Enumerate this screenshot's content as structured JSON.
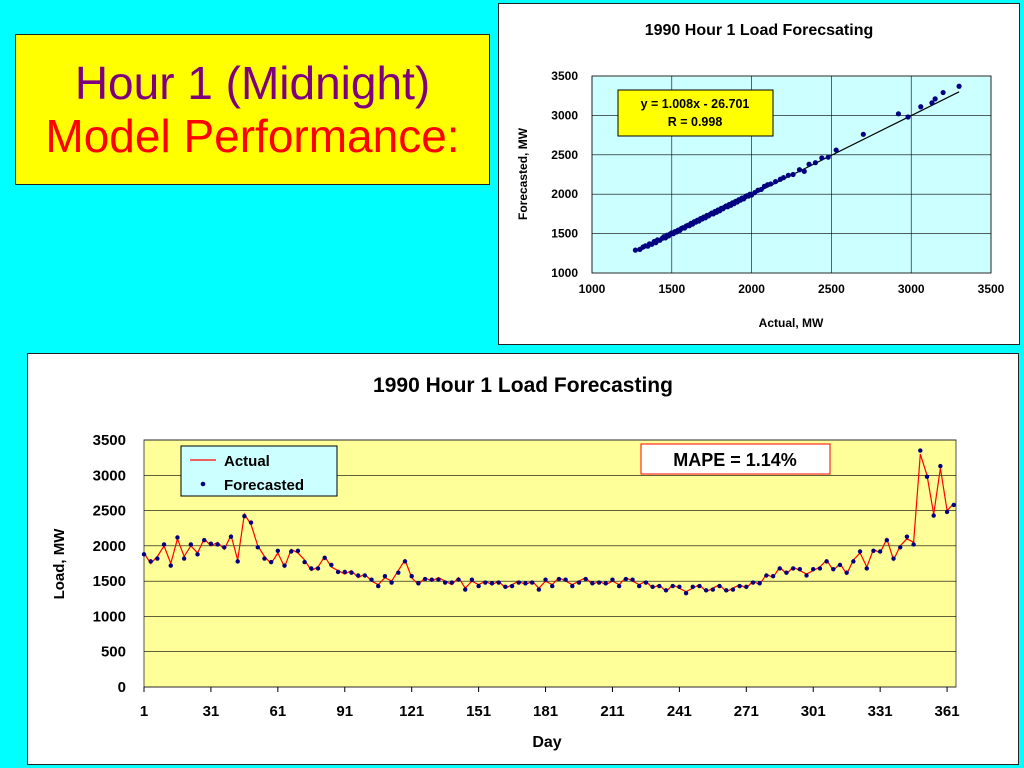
{
  "slide": {
    "title_line1": "Hour 1 (Midnight)",
    "title_line2": "Model Performance:",
    "colors": {
      "background": "#00FFFF",
      "title_box": "#FFFF00",
      "title_line1": "#7F007F",
      "title_line2": "#FF0000",
      "scatter_plot_area": "#CCFFFF",
      "line_plot_area": "#FFFF99",
      "actual_line": "#FF0000",
      "forecast_marker": "#000080"
    }
  },
  "chart_data": [
    {
      "type": "scatter",
      "title": "1990 Hour 1 Load Forecsating",
      "xlabel": "Actual, MW",
      "ylabel": "Forecasted, MW",
      "xlim": [
        1000,
        3500
      ],
      "ylim": [
        1000,
        3500
      ],
      "xticks": [
        1000,
        1500,
        2000,
        2500,
        3000,
        3500
      ],
      "yticks": [
        1000,
        1500,
        2000,
        2500,
        3000,
        3500
      ],
      "grid": true,
      "trendline": {
        "slope": 1.008,
        "intercept": -26.701,
        "x_range": [
          1300,
          3300
        ]
      },
      "annotation": {
        "line1": "y = 1.008x - 26.701",
        "line2": "R = 0.998"
      },
      "points": [
        [
          1272,
          1290
        ],
        [
          1300,
          1300
        ],
        [
          1320,
          1330
        ],
        [
          1335,
          1345
        ],
        [
          1350,
          1340
        ],
        [
          1360,
          1370
        ],
        [
          1375,
          1365
        ],
        [
          1390,
          1400
        ],
        [
          1400,
          1385
        ],
        [
          1410,
          1420
        ],
        [
          1425,
          1415
        ],
        [
          1440,
          1440
        ],
        [
          1450,
          1460
        ],
        [
          1460,
          1445
        ],
        [
          1470,
          1480
        ],
        [
          1480,
          1470
        ],
        [
          1490,
          1495
        ],
        [
          1500,
          1510
        ],
        [
          1510,
          1500
        ],
        [
          1520,
          1525
        ],
        [
          1530,
          1520
        ],
        [
          1540,
          1545
        ],
        [
          1550,
          1540
        ],
        [
          1560,
          1565
        ],
        [
          1570,
          1575
        ],
        [
          1580,
          1570
        ],
        [
          1590,
          1595
        ],
        [
          1600,
          1605
        ],
        [
          1610,
          1600
        ],
        [
          1620,
          1630
        ],
        [
          1630,
          1620
        ],
        [
          1640,
          1650
        ],
        [
          1650,
          1645
        ],
        [
          1660,
          1670
        ],
        [
          1670,
          1660
        ],
        [
          1680,
          1690
        ],
        [
          1690,
          1685
        ],
        [
          1700,
          1710
        ],
        [
          1710,
          1700
        ],
        [
          1720,
          1730
        ],
        [
          1730,
          1725
        ],
        [
          1740,
          1745
        ],
        [
          1750,
          1760
        ],
        [
          1760,
          1750
        ],
        [
          1770,
          1780
        ],
        [
          1780,
          1770
        ],
        [
          1790,
          1800
        ],
        [
          1800,
          1790
        ],
        [
          1810,
          1820
        ],
        [
          1820,
          1815
        ],
        [
          1830,
          1835
        ],
        [
          1840,
          1850
        ],
        [
          1850,
          1840
        ],
        [
          1860,
          1870
        ],
        [
          1870,
          1860
        ],
        [
          1880,
          1890
        ],
        [
          1890,
          1880
        ],
        [
          1900,
          1910
        ],
        [
          1910,
          1900
        ],
        [
          1920,
          1930
        ],
        [
          1930,
          1925
        ],
        [
          1940,
          1950
        ],
        [
          1950,
          1940
        ],
        [
          1960,
          1965
        ],
        [
          1970,
          1980
        ],
        [
          1980,
          1975
        ],
        [
          1990,
          2000
        ],
        [
          2000,
          1990
        ],
        [
          2020,
          2020
        ],
        [
          2040,
          2050
        ],
        [
          2060,
          2060
        ],
        [
          2080,
          2100
        ],
        [
          2100,
          2120
        ],
        [
          2120,
          2130
        ],
        [
          2150,
          2160
        ],
        [
          2180,
          2190
        ],
        [
          2200,
          2210
        ],
        [
          2230,
          2240
        ],
        [
          2260,
          2250
        ],
        [
          2300,
          2310
        ],
        [
          2330,
          2290
        ],
        [
          2360,
          2380
        ],
        [
          2400,
          2400
        ],
        [
          2440,
          2460
        ],
        [
          2480,
          2470
        ],
        [
          2530,
          2560
        ],
        [
          2700,
          2760
        ],
        [
          2920,
          3020
        ],
        [
          2980,
          2980
        ],
        [
          3060,
          3110
        ],
        [
          3130,
          3160
        ],
        [
          3150,
          3210
        ],
        [
          3200,
          3290
        ],
        [
          3300,
          3370
        ]
      ]
    },
    {
      "type": "line",
      "title": "1990 Hour 1 Load Forecasting",
      "xlabel": "Day",
      "ylabel": "Load, MW",
      "xlim": [
        1,
        365
      ],
      "ylim": [
        0,
        3500
      ],
      "xticks": [
        1,
        31,
        61,
        91,
        121,
        151,
        181,
        211,
        241,
        271,
        301,
        331,
        361
      ],
      "yticks": [
        0,
        500,
        1000,
        1500,
        2000,
        2500,
        3000,
        3500
      ],
      "grid": true,
      "legend": {
        "position": "top-left",
        "entries": [
          "Actual",
          "Forecasted"
        ]
      },
      "annotation": "MAPE = 1.14%",
      "x": [
        1,
        4,
        7,
        10,
        13,
        16,
        19,
        22,
        25,
        28,
        31,
        34,
        37,
        40,
        43,
        46,
        49,
        52,
        55,
        58,
        61,
        64,
        67,
        70,
        73,
        76,
        79,
        82,
        85,
        88,
        91,
        94,
        97,
        100,
        103,
        106,
        109,
        112,
        115,
        118,
        121,
        124,
        127,
        130,
        133,
        136,
        139,
        142,
        145,
        148,
        151,
        154,
        157,
        160,
        163,
        166,
        169,
        172,
        175,
        178,
        181,
        184,
        187,
        190,
        193,
        196,
        199,
        202,
        205,
        208,
        211,
        214,
        217,
        220,
        223,
        226,
        229,
        232,
        235,
        238,
        241,
        244,
        247,
        250,
        253,
        256,
        259,
        262,
        265,
        268,
        271,
        274,
        277,
        280,
        283,
        286,
        289,
        292,
        295,
        298,
        301,
        304,
        307,
        310,
        313,
        316,
        319,
        322,
        325,
        328,
        331,
        334,
        337,
        340,
        343,
        346,
        349,
        352,
        355,
        358,
        361,
        364
      ],
      "series": [
        {
          "name": "Actual",
          "values": [
            1900,
            1750,
            1850,
            2000,
            1750,
            2100,
            1850,
            2000,
            1900,
            2100,
            2000,
            2050,
            1950,
            2150,
            1800,
            2450,
            2300,
            2000,
            1850,
            1750,
            1900,
            1700,
            1950,
            1900,
            1800,
            1650,
            1700,
            1850,
            1700,
            1650,
            1600,
            1650,
            1550,
            1600,
            1500,
            1450,
            1550,
            1500,
            1650,
            1800,
            1550,
            1450,
            1550,
            1500,
            1550,
            1500,
            1450,
            1550,
            1400,
            1500,
            1450,
            1500,
            1450,
            1500,
            1400,
            1450,
            1500,
            1450,
            1500,
            1400,
            1500,
            1450,
            1550,
            1500,
            1450,
            1500,
            1550,
            1450,
            1500,
            1450,
            1500,
            1450,
            1550,
            1500,
            1450,
            1500,
            1400,
            1450,
            1350,
            1450,
            1400,
            1350,
            1400,
            1450,
            1350,
            1400,
            1450,
            1350,
            1400,
            1450,
            1400,
            1500,
            1450,
            1600,
            1550,
            1700,
            1600,
            1700,
            1650,
            1600,
            1650,
            1700,
            1800,
            1650,
            1750,
            1600,
            1800,
            1900,
            1700,
            1950,
            1900,
            2100,
            1800,
            2000,
            2100,
            2050,
            3300,
            3000,
            2450,
            3100,
            2500,
            2600
          ]
        },
        {
          "name": "Forecasted",
          "values": [
            1880,
            1780,
            1820,
            2020,
            1720,
            2120,
            1820,
            2020,
            1880,
            2080,
            2030,
            2020,
            1980,
            2130,
            1780,
            2420,
            2330,
            1980,
            1820,
            1770,
            1930,
            1720,
            1920,
            1930,
            1770,
            1680,
            1680,
            1830,
            1730,
            1630,
            1630,
            1620,
            1580,
            1580,
            1520,
            1430,
            1570,
            1480,
            1620,
            1780,
            1570,
            1470,
            1530,
            1520,
            1520,
            1480,
            1480,
            1520,
            1380,
            1520,
            1430,
            1480,
            1470,
            1480,
            1420,
            1430,
            1480,
            1470,
            1480,
            1380,
            1520,
            1430,
            1530,
            1520,
            1430,
            1480,
            1530,
            1470,
            1480,
            1470,
            1520,
            1430,
            1530,
            1520,
            1430,
            1480,
            1420,
            1430,
            1370,
            1430,
            1420,
            1330,
            1420,
            1430,
            1370,
            1380,
            1430,
            1370,
            1380,
            1430,
            1420,
            1480,
            1470,
            1580,
            1570,
            1680,
            1620,
            1680,
            1670,
            1580,
            1670,
            1680,
            1780,
            1670,
            1730,
            1620,
            1780,
            1920,
            1680,
            1930,
            1920,
            2080,
            1820,
            1980,
            2130,
            2020,
            3350,
            2980,
            2430,
            3130,
            2480,
            2580
          ]
        }
      ]
    }
  ]
}
